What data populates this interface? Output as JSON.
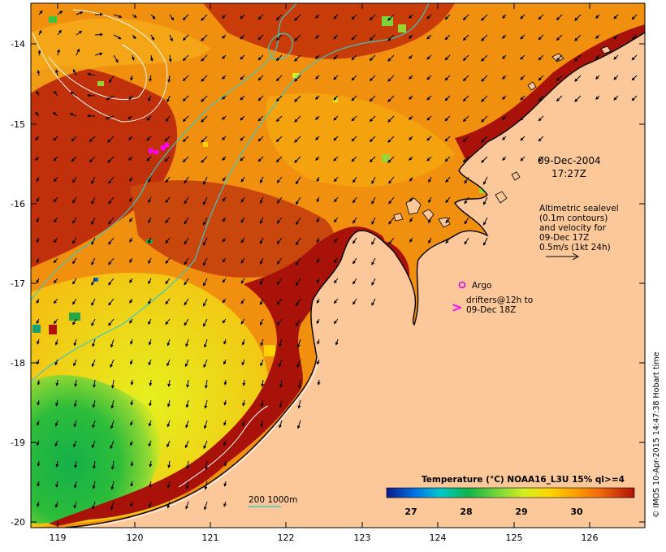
{
  "map": {
    "date_line1": "09-Dec-2004",
    "date_line2": "17:27Z",
    "altimetry_lines": [
      "Altimetric sealevel",
      "(0.1m contours)",
      "and velocity for",
      "09-Dec 17Z",
      "0.5m/s (1kt 24h)"
    ],
    "argo_label": "Argo",
    "drifters_lines": [
      "drifters@12h to",
      "09-Dec 18Z"
    ],
    "isobath_label": "200  1000m",
    "credit": "© IMOS 10-Apr-2015 14:47:38 Hobart time",
    "x_ticks": [
      "119",
      "120",
      "121",
      "122",
      "123",
      "124",
      "125",
      "126"
    ],
    "y_ticks": [
      "-14",
      "-15",
      "-16",
      "-17",
      "-18",
      "-19",
      "-20"
    ],
    "colorbar": {
      "title": "Temperature (°C) NOAA16_L3U 15% ql>=4",
      "ticks": [
        "27",
        "28",
        "29",
        "30"
      ],
      "colors": [
        "#0b1a8c",
        "#0077e6",
        "#00c8c8",
        "#11b34a",
        "#7ad63a",
        "#d8ee20",
        "#ffd400",
        "#ffa000",
        "#f06a0c",
        "#b01205"
      ]
    },
    "colors": {
      "land": "#fcc89a",
      "warm": "#a81208",
      "isobath": "#3cc8c0",
      "contour": "#ffffff",
      "argo": "#e000e0"
    }
  }
}
